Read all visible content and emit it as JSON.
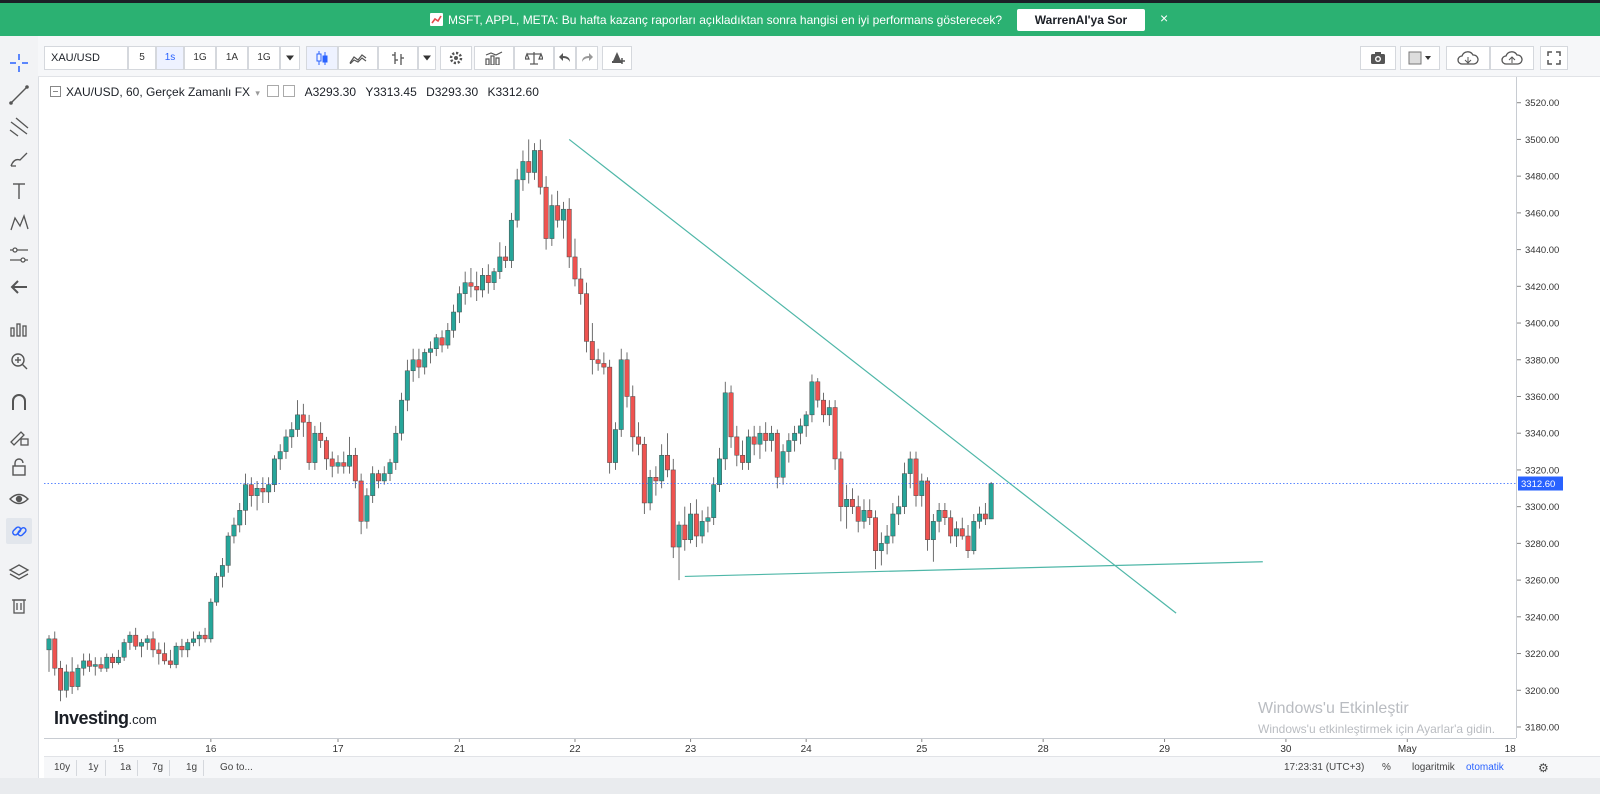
{
  "banner": {
    "message": "MSFT, APPL, META: Bu hafta kazanç raporları açıkladıktan sonra hangisi en iyi performans gösterecek?",
    "button_label": "WarrenAI'ya Sor",
    "close_label": "×",
    "bg_color": "#2bb172"
  },
  "toolbar": {
    "symbol": "XAU/USD",
    "intervals": [
      "5",
      "1s",
      "1G",
      "1A",
      "1G"
    ],
    "active_interval": "1s"
  },
  "legend": {
    "symbol": "XAU/USD, 60, Gerçek Zamanlı FX",
    "open": "A3293.30",
    "high": "Y3313.45",
    "low": "D3293.30",
    "close": "K3312.60"
  },
  "logo": {
    "name": "Investing",
    "suffix": ".com"
  },
  "watermark": {
    "line1": "Windows'u Etkinleştir",
    "line2": "Windows'u etkinleştirmek için Ayarlar'a gidin."
  },
  "bottombar": {
    "ranges": [
      "10y",
      "1y",
      "1a",
      "7g",
      "1g",
      "Go to..."
    ],
    "time": "17:23:31 (UTC+3)",
    "percent": "%",
    "log": "logaritmik",
    "auto": "otomatik"
  },
  "chart_data": {
    "type": "candlestick",
    "title": "",
    "interval": "60",
    "y_ticks": [
      3180,
      3200,
      3220,
      3240,
      3260,
      3280,
      3300,
      3320,
      3340,
      3360,
      3380,
      3400,
      3420,
      3440,
      3460,
      3480,
      3500,
      3520
    ],
    "ylim": [
      3174,
      3534
    ],
    "last_price": 3312.6,
    "x_ticks": [
      "15",
      "16",
      "17",
      "21",
      "22",
      "23",
      "24",
      "25",
      "28",
      "29",
      "30",
      "May",
      "18:00"
    ],
    "up_color": "#26a69a",
    "down_color": "#ef5350",
    "candles": [
      {
        "o": 3222,
        "h": 3230,
        "l": 3210,
        "c": 3228
      },
      {
        "o": 3228,
        "h": 3232,
        "l": 3208,
        "c": 3212
      },
      {
        "o": 3212,
        "h": 3216,
        "l": 3194,
        "c": 3200
      },
      {
        "o": 3200,
        "h": 3214,
        "l": 3196,
        "c": 3210
      },
      {
        "o": 3210,
        "h": 3218,
        "l": 3198,
        "c": 3202
      },
      {
        "o": 3202,
        "h": 3214,
        "l": 3200,
        "c": 3212
      },
      {
        "o": 3212,
        "h": 3220,
        "l": 3208,
        "c": 3216
      },
      {
        "o": 3216,
        "h": 3220,
        "l": 3210,
        "c": 3213
      },
      {
        "o": 3213,
        "h": 3218,
        "l": 3208,
        "c": 3214
      },
      {
        "o": 3214,
        "h": 3218,
        "l": 3210,
        "c": 3212
      },
      {
        "o": 3212,
        "h": 3220,
        "l": 3210,
        "c": 3218
      },
      {
        "o": 3218,
        "h": 3220,
        "l": 3212,
        "c": 3215
      },
      {
        "o": 3215,
        "h": 3222,
        "l": 3214,
        "c": 3218
      },
      {
        "o": 3218,
        "h": 3228,
        "l": 3216,
        "c": 3226
      },
      {
        "o": 3226,
        "h": 3232,
        "l": 3222,
        "c": 3230
      },
      {
        "o": 3230,
        "h": 3234,
        "l": 3222,
        "c": 3224
      },
      {
        "o": 3224,
        "h": 3228,
        "l": 3218,
        "c": 3226
      },
      {
        "o": 3226,
        "h": 3230,
        "l": 3222,
        "c": 3228
      },
      {
        "o": 3228,
        "h": 3232,
        "l": 3218,
        "c": 3222
      },
      {
        "o": 3222,
        "h": 3226,
        "l": 3214,
        "c": 3220
      },
      {
        "o": 3220,
        "h": 3226,
        "l": 3214,
        "c": 3216
      },
      {
        "o": 3216,
        "h": 3222,
        "l": 3212,
        "c": 3214
      },
      {
        "o": 3214,
        "h": 3226,
        "l": 3212,
        "c": 3224
      },
      {
        "o": 3224,
        "h": 3228,
        "l": 3218,
        "c": 3222
      },
      {
        "o": 3222,
        "h": 3228,
        "l": 3218,
        "c": 3226
      },
      {
        "o": 3226,
        "h": 3232,
        "l": 3224,
        "c": 3228
      },
      {
        "o": 3228,
        "h": 3232,
        "l": 3224,
        "c": 3230
      },
      {
        "o": 3230,
        "h": 3234,
        "l": 3226,
        "c": 3228
      },
      {
        "o": 3228,
        "h": 3250,
        "l": 3226,
        "c": 3248
      },
      {
        "o": 3248,
        "h": 3264,
        "l": 3246,
        "c": 3262
      },
      {
        "o": 3262,
        "h": 3272,
        "l": 3256,
        "c": 3268
      },
      {
        "o": 3268,
        "h": 3286,
        "l": 3264,
        "c": 3284
      },
      {
        "o": 3284,
        "h": 3294,
        "l": 3280,
        "c": 3290
      },
      {
        "o": 3290,
        "h": 3302,
        "l": 3286,
        "c": 3298
      },
      {
        "o": 3298,
        "h": 3318,
        "l": 3290,
        "c": 3312
      },
      {
        "o": 3312,
        "h": 3316,
        "l": 3300,
        "c": 3306
      },
      {
        "o": 3306,
        "h": 3314,
        "l": 3298,
        "c": 3310
      },
      {
        "o": 3310,
        "h": 3316,
        "l": 3302,
        "c": 3308
      },
      {
        "o": 3308,
        "h": 3316,
        "l": 3302,
        "c": 3312
      },
      {
        "o": 3312,
        "h": 3328,
        "l": 3308,
        "c": 3326
      },
      {
        "o": 3326,
        "h": 3334,
        "l": 3320,
        "c": 3330
      },
      {
        "o": 3330,
        "h": 3342,
        "l": 3326,
        "c": 3338
      },
      {
        "o": 3338,
        "h": 3346,
        "l": 3332,
        "c": 3342
      },
      {
        "o": 3342,
        "h": 3358,
        "l": 3338,
        "c": 3350
      },
      {
        "o": 3350,
        "h": 3356,
        "l": 3338,
        "c": 3346
      },
      {
        "o": 3346,
        "h": 3350,
        "l": 3320,
        "c": 3324
      },
      {
        "o": 3324,
        "h": 3344,
        "l": 3320,
        "c": 3340
      },
      {
        "o": 3340,
        "h": 3346,
        "l": 3332,
        "c": 3336
      },
      {
        "o": 3336,
        "h": 3338,
        "l": 3320,
        "c": 3326
      },
      {
        "o": 3326,
        "h": 3330,
        "l": 3316,
        "c": 3322
      },
      {
        "o": 3322,
        "h": 3328,
        "l": 3318,
        "c": 3324
      },
      {
        "o": 3324,
        "h": 3330,
        "l": 3318,
        "c": 3322
      },
      {
        "o": 3322,
        "h": 3338,
        "l": 3318,
        "c": 3328
      },
      {
        "o": 3328,
        "h": 3332,
        "l": 3310,
        "c": 3314
      },
      {
        "o": 3314,
        "h": 3318,
        "l": 3285,
        "c": 3292
      },
      {
        "o": 3292,
        "h": 3310,
        "l": 3288,
        "c": 3306
      },
      {
        "o": 3306,
        "h": 3322,
        "l": 3302,
        "c": 3318
      },
      {
        "o": 3318,
        "h": 3320,
        "l": 3310,
        "c": 3314
      },
      {
        "o": 3314,
        "h": 3322,
        "l": 3312,
        "c": 3318
      },
      {
        "o": 3318,
        "h": 3326,
        "l": 3314,
        "c": 3324
      },
      {
        "o": 3324,
        "h": 3344,
        "l": 3320,
        "c": 3340
      },
      {
        "o": 3340,
        "h": 3362,
        "l": 3336,
        "c": 3358
      },
      {
        "o": 3358,
        "h": 3380,
        "l": 3352,
        "c": 3374
      },
      {
        "o": 3374,
        "h": 3386,
        "l": 3368,
        "c": 3380
      },
      {
        "o": 3380,
        "h": 3386,
        "l": 3370,
        "c": 3376
      },
      {
        "o": 3376,
        "h": 3386,
        "l": 3372,
        "c": 3384
      },
      {
        "o": 3384,
        "h": 3390,
        "l": 3378,
        "c": 3386
      },
      {
        "o": 3386,
        "h": 3394,
        "l": 3382,
        "c": 3392
      },
      {
        "o": 3392,
        "h": 3396,
        "l": 3384,
        "c": 3388
      },
      {
        "o": 3388,
        "h": 3400,
        "l": 3386,
        "c": 3396
      },
      {
        "o": 3396,
        "h": 3410,
        "l": 3392,
        "c": 3406
      },
      {
        "o": 3406,
        "h": 3420,
        "l": 3400,
        "c": 3416
      },
      {
        "o": 3416,
        "h": 3428,
        "l": 3410,
        "c": 3422
      },
      {
        "o": 3422,
        "h": 3430,
        "l": 3414,
        "c": 3420
      },
      {
        "o": 3420,
        "h": 3428,
        "l": 3412,
        "c": 3418
      },
      {
        "o": 3418,
        "h": 3430,
        "l": 3414,
        "c": 3426
      },
      {
        "o": 3426,
        "h": 3432,
        "l": 3416,
        "c": 3422
      },
      {
        "o": 3422,
        "h": 3430,
        "l": 3418,
        "c": 3428
      },
      {
        "o": 3428,
        "h": 3444,
        "l": 3424,
        "c": 3436
      },
      {
        "o": 3436,
        "h": 3442,
        "l": 3430,
        "c": 3434
      },
      {
        "o": 3434,
        "h": 3460,
        "l": 3430,
        "c": 3456
      },
      {
        "o": 3456,
        "h": 3484,
        "l": 3452,
        "c": 3478
      },
      {
        "o": 3478,
        "h": 3494,
        "l": 3472,
        "c": 3488
      },
      {
        "o": 3488,
        "h": 3500,
        "l": 3476,
        "c": 3482
      },
      {
        "o": 3482,
        "h": 3498,
        "l": 3478,
        "c": 3494
      },
      {
        "o": 3494,
        "h": 3500,
        "l": 3470,
        "c": 3474
      },
      {
        "o": 3474,
        "h": 3480,
        "l": 3440,
        "c": 3446
      },
      {
        "o": 3446,
        "h": 3470,
        "l": 3442,
        "c": 3464
      },
      {
        "o": 3464,
        "h": 3472,
        "l": 3452,
        "c": 3456
      },
      {
        "o": 3456,
        "h": 3466,
        "l": 3446,
        "c": 3462
      },
      {
        "o": 3462,
        "h": 3468,
        "l": 3430,
        "c": 3436
      },
      {
        "o": 3436,
        "h": 3446,
        "l": 3420,
        "c": 3424
      },
      {
        "o": 3424,
        "h": 3430,
        "l": 3410,
        "c": 3416
      },
      {
        "o": 3416,
        "h": 3422,
        "l": 3384,
        "c": 3390
      },
      {
        "o": 3390,
        "h": 3400,
        "l": 3372,
        "c": 3380
      },
      {
        "o": 3380,
        "h": 3386,
        "l": 3374,
        "c": 3378
      },
      {
        "o": 3378,
        "h": 3384,
        "l": 3372,
        "c": 3376
      },
      {
        "o": 3376,
        "h": 3380,
        "l": 3318,
        "c": 3324
      },
      {
        "o": 3324,
        "h": 3346,
        "l": 3320,
        "c": 3342
      },
      {
        "o": 3342,
        "h": 3386,
        "l": 3338,
        "c": 3380
      },
      {
        "o": 3380,
        "h": 3384,
        "l": 3354,
        "c": 3360
      },
      {
        "o": 3360,
        "h": 3366,
        "l": 3330,
        "c": 3338
      },
      {
        "o": 3338,
        "h": 3346,
        "l": 3328,
        "c": 3334
      },
      {
        "o": 3334,
        "h": 3338,
        "l": 3296,
        "c": 3302
      },
      {
        "o": 3302,
        "h": 3320,
        "l": 3298,
        "c": 3316
      },
      {
        "o": 3316,
        "h": 3322,
        "l": 3306,
        "c": 3314
      },
      {
        "o": 3314,
        "h": 3334,
        "l": 3310,
        "c": 3328
      },
      {
        "o": 3328,
        "h": 3340,
        "l": 3316,
        "c": 3320
      },
      {
        "o": 3320,
        "h": 3326,
        "l": 3272,
        "c": 3278
      },
      {
        "o": 3278,
        "h": 3292,
        "l": 3260,
        "c": 3290
      },
      {
        "o": 3290,
        "h": 3300,
        "l": 3276,
        "c": 3282
      },
      {
        "o": 3282,
        "h": 3302,
        "l": 3280,
        "c": 3296
      },
      {
        "o": 3296,
        "h": 3304,
        "l": 3278,
        "c": 3284
      },
      {
        "o": 3284,
        "h": 3298,
        "l": 3280,
        "c": 3292
      },
      {
        "o": 3292,
        "h": 3300,
        "l": 3286,
        "c": 3294
      },
      {
        "o": 3294,
        "h": 3316,
        "l": 3290,
        "c": 3312
      },
      {
        "o": 3312,
        "h": 3332,
        "l": 3308,
        "c": 3326
      },
      {
        "o": 3326,
        "h": 3368,
        "l": 3320,
        "c": 3362
      },
      {
        "o": 3362,
        "h": 3366,
        "l": 3332,
        "c": 3338
      },
      {
        "o": 3338,
        "h": 3344,
        "l": 3322,
        "c": 3328
      },
      {
        "o": 3328,
        "h": 3336,
        "l": 3320,
        "c": 3324
      },
      {
        "o": 3324,
        "h": 3342,
        "l": 3320,
        "c": 3338
      },
      {
        "o": 3338,
        "h": 3344,
        "l": 3328,
        "c": 3334
      },
      {
        "o": 3334,
        "h": 3344,
        "l": 3326,
        "c": 3340
      },
      {
        "o": 3340,
        "h": 3346,
        "l": 3330,
        "c": 3336
      },
      {
        "o": 3336,
        "h": 3344,
        "l": 3330,
        "c": 3340
      },
      {
        "o": 3340,
        "h": 3342,
        "l": 3310,
        "c": 3316
      },
      {
        "o": 3316,
        "h": 3334,
        "l": 3312,
        "c": 3330
      },
      {
        "o": 3330,
        "h": 3340,
        "l": 3324,
        "c": 3336
      },
      {
        "o": 3336,
        "h": 3344,
        "l": 3330,
        "c": 3340
      },
      {
        "o": 3340,
        "h": 3348,
        "l": 3334,
        "c": 3344
      },
      {
        "o": 3344,
        "h": 3352,
        "l": 3338,
        "c": 3350
      },
      {
        "o": 3350,
        "h": 3372,
        "l": 3346,
        "c": 3368
      },
      {
        "o": 3368,
        "h": 3370,
        "l": 3354,
        "c": 3358
      },
      {
        "o": 3358,
        "h": 3362,
        "l": 3346,
        "c": 3350
      },
      {
        "o": 3350,
        "h": 3358,
        "l": 3344,
        "c": 3354
      },
      {
        "o": 3354,
        "h": 3358,
        "l": 3320,
        "c": 3326
      },
      {
        "o": 3326,
        "h": 3330,
        "l": 3292,
        "c": 3300
      },
      {
        "o": 3300,
        "h": 3312,
        "l": 3288,
        "c": 3304
      },
      {
        "o": 3304,
        "h": 3310,
        "l": 3296,
        "c": 3300
      },
      {
        "o": 3300,
        "h": 3306,
        "l": 3286,
        "c": 3292
      },
      {
        "o": 3292,
        "h": 3304,
        "l": 3288,
        "c": 3298
      },
      {
        "o": 3298,
        "h": 3304,
        "l": 3290,
        "c": 3294
      },
      {
        "o": 3294,
        "h": 3298,
        "l": 3266,
        "c": 3276
      },
      {
        "o": 3276,
        "h": 3286,
        "l": 3268,
        "c": 3280
      },
      {
        "o": 3280,
        "h": 3290,
        "l": 3274,
        "c": 3284
      },
      {
        "o": 3284,
        "h": 3302,
        "l": 3280,
        "c": 3296
      },
      {
        "o": 3296,
        "h": 3306,
        "l": 3290,
        "c": 3300
      },
      {
        "o": 3300,
        "h": 3324,
        "l": 3296,
        "c": 3318
      },
      {
        "o": 3318,
        "h": 3330,
        "l": 3310,
        "c": 3326
      },
      {
        "o": 3326,
        "h": 3330,
        "l": 3300,
        "c": 3306
      },
      {
        "o": 3306,
        "h": 3318,
        "l": 3300,
        "c": 3314
      },
      {
        "o": 3314,
        "h": 3316,
        "l": 3276,
        "c": 3282
      },
      {
        "o": 3282,
        "h": 3296,
        "l": 3270,
        "c": 3292
      },
      {
        "o": 3292,
        "h": 3302,
        "l": 3286,
        "c": 3298
      },
      {
        "o": 3298,
        "h": 3302,
        "l": 3290,
        "c": 3294
      },
      {
        "o": 3294,
        "h": 3298,
        "l": 3280,
        "c": 3284
      },
      {
        "o": 3284,
        "h": 3292,
        "l": 3278,
        "c": 3288
      },
      {
        "o": 3288,
        "h": 3294,
        "l": 3282,
        "c": 3284
      },
      {
        "o": 3284,
        "h": 3290,
        "l": 3272,
        "c": 3276
      },
      {
        "o": 3276,
        "h": 3296,
        "l": 3274,
        "c": 3292
      },
      {
        "o": 3292,
        "h": 3300,
        "l": 3288,
        "c": 3296
      },
      {
        "o": 3296,
        "h": 3302,
        "l": 3290,
        "c": 3293.3
      },
      {
        "o": 3293.3,
        "h": 3313.45,
        "l": 3293.3,
        "c": 3312.6
      }
    ],
    "trendlines": [
      {
        "name": "resistance",
        "from": {
          "index": 90,
          "price": 3500
        },
        "to": {
          "index": 195,
          "price": 3242
        },
        "color": "#4fb7a8"
      },
      {
        "name": "support",
        "from": {
          "index": 110,
          "price": 3262
        },
        "to": {
          "index": 210,
          "price": 3270
        },
        "color": "#4fb7a8"
      }
    ]
  }
}
